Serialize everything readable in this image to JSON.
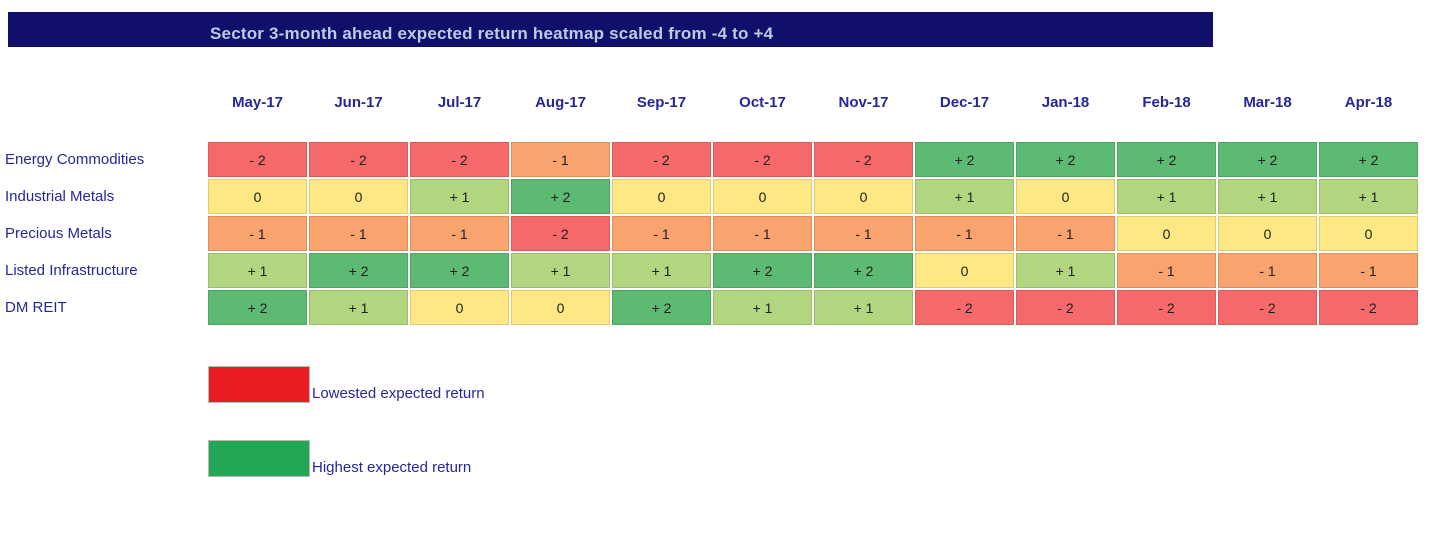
{
  "colors": {
    "title_bar_bg": "#10106B",
    "title_text": "#B8CCE4",
    "label_text": "#26269B",
    "cell_text": "#1E1E1E",
    "value_colors": {
      "-2": "#F5696B",
      "-1": "#F9A36F",
      "0": "#FEE883",
      "1": "#B2D67F",
      "2": "#5CBA72"
    }
  },
  "chart_data": {
    "type": "heatmap",
    "title": "Sector 3-month ahead expected return heatmap scaled from -4 to +4",
    "x": [
      "May-17",
      "Jun-17",
      "Jul-17",
      "Aug-17",
      "Sep-17",
      "Oct-17",
      "Nov-17",
      "Dec-17",
      "Jan-18",
      "Feb-18",
      "Mar-18",
      "Apr-18"
    ],
    "y": [
      "Energy Commodities",
      "Industrial Metals",
      "Precious Metals",
      "Listed Infrastructure",
      "DM REIT"
    ],
    "scale": {
      "min": -4,
      "max": 4
    },
    "values": [
      [
        -2,
        -2,
        -2,
        -1,
        -2,
        -2,
        -2,
        2,
        2,
        2,
        2,
        2
      ],
      [
        0,
        0,
        1,
        2,
        0,
        0,
        0,
        1,
        0,
        1,
        1,
        1
      ],
      [
        -1,
        -1,
        -1,
        -2,
        -1,
        -1,
        -1,
        -1,
        -1,
        0,
        0,
        0
      ],
      [
        1,
        2,
        2,
        1,
        1,
        2,
        2,
        0,
        1,
        -1,
        -1,
        -1
      ],
      [
        2,
        1,
        0,
        0,
        2,
        1,
        1,
        -2,
        -2,
        -2,
        -2,
        -2
      ]
    ],
    "value_display": {
      "-2": "- 2",
      "-1": "- 1",
      "0": "0",
      "1": "+ 1",
      "2": "+ 2"
    },
    "colormap": "red-yellow-green",
    "legend_position": "bottom-left",
    "legend": [
      {
        "label": "Lowested expected return",
        "color": "#EC1C24"
      },
      {
        "label": "Highest expected return",
        "color": "#22A855"
      }
    ]
  }
}
